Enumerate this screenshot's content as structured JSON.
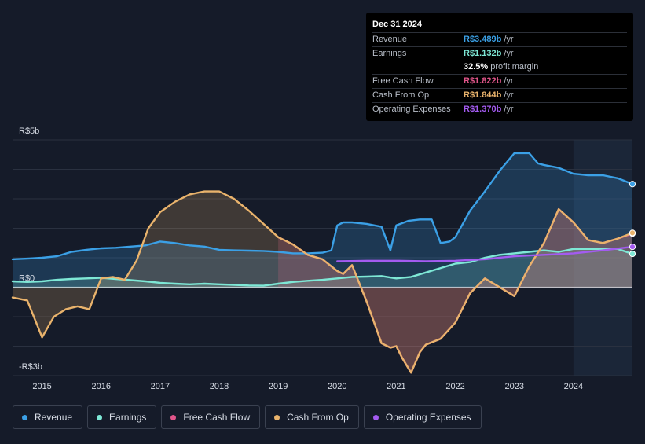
{
  "tooltip": {
    "date": "Dec 31 2024",
    "rows": [
      {
        "label": "Revenue",
        "value": "R$3.489b",
        "unit": "/yr",
        "color": "#3ba0e6"
      },
      {
        "label": "Earnings",
        "value": "R$1.132b",
        "unit": "/yr",
        "color": "#7ee8d6"
      },
      {
        "label": "",
        "value": "32.5%",
        "unit": "profit margin",
        "color": "#ffffff"
      },
      {
        "label": "Free Cash Flow",
        "value": "R$1.822b",
        "unit": "/yr",
        "color": "#e0558a"
      },
      {
        "label": "Cash From Op",
        "value": "R$1.844b",
        "unit": "/yr",
        "color": "#e9b36c"
      },
      {
        "label": "Operating Expenses",
        "value": "R$1.370b",
        "unit": "/yr",
        "color": "#a35bf0"
      }
    ]
  },
  "legend": [
    {
      "label": "Revenue",
      "color": "#3ba0e6"
    },
    {
      "label": "Earnings",
      "color": "#7ee8d6"
    },
    {
      "label": "Free Cash Flow",
      "color": "#e0558a"
    },
    {
      "label": "Cash From Op",
      "color": "#e9b36c"
    },
    {
      "label": "Operating Expenses",
      "color": "#a35bf0"
    }
  ],
  "chart_data": {
    "type": "area",
    "title": "",
    "xlabel": "",
    "ylabel": "",
    "ylim": [
      -3,
      5
    ],
    "xlim": [
      2014.5,
      2025.0
    ],
    "y_tick_labels": [
      {
        "value": 5,
        "label": "R$5b"
      },
      {
        "value": 0,
        "label": "R$0"
      },
      {
        "value": -3,
        "label": "-R$3b"
      }
    ],
    "x_tick_labels": [
      "2015",
      "2016",
      "2017",
      "2018",
      "2019",
      "2020",
      "2021",
      "2022",
      "2023",
      "2024"
    ],
    "x_ticks": [
      2015,
      2016,
      2017,
      2018,
      2019,
      2020,
      2021,
      2022,
      2023,
      2024
    ],
    "gridlines": [
      5,
      4,
      3,
      2,
      1,
      0,
      -1,
      -2,
      -3
    ],
    "forecast_start": 2024.0,
    "series": [
      {
        "name": "Revenue",
        "color": "#3ba0e6",
        "fill": true,
        "x": [
          2014.5,
          2014.75,
          2015.0,
          2015.25,
          2015.5,
          2015.75,
          2016.0,
          2016.25,
          2016.5,
          2016.75,
          2017.0,
          2017.25,
          2017.5,
          2017.75,
          2018.0,
          2018.25,
          2018.5,
          2018.75,
          2019.0,
          2019.25,
          2019.5,
          2019.75,
          2019.9,
          2020.0,
          2020.1,
          2020.25,
          2020.5,
          2020.75,
          2020.9,
          2021.0,
          2021.2,
          2021.4,
          2021.6,
          2021.75,
          2021.9,
          2022.0,
          2022.25,
          2022.5,
          2022.75,
          2023.0,
          2023.25,
          2023.4,
          2023.5,
          2023.75,
          2024.0,
          2024.25,
          2024.5,
          2024.75,
          2025.0
        ],
        "y": [
          0.95,
          0.97,
          1.0,
          1.05,
          1.2,
          1.27,
          1.32,
          1.34,
          1.38,
          1.42,
          1.55,
          1.5,
          1.42,
          1.38,
          1.27,
          1.25,
          1.24,
          1.23,
          1.2,
          1.15,
          1.15,
          1.17,
          1.25,
          2.1,
          2.2,
          2.2,
          2.15,
          2.05,
          1.25,
          2.1,
          2.25,
          2.3,
          2.3,
          1.5,
          1.55,
          1.7,
          2.6,
          3.25,
          3.95,
          4.55,
          4.55,
          4.2,
          4.15,
          4.05,
          3.85,
          3.8,
          3.8,
          3.7,
          3.5
        ]
      },
      {
        "name": "Earnings",
        "color": "#7ee8d6",
        "fill": true,
        "x": [
          2014.5,
          2014.75,
          2015.0,
          2015.25,
          2015.5,
          2015.75,
          2016.0,
          2016.25,
          2016.5,
          2016.75,
          2017.0,
          2017.25,
          2017.5,
          2017.75,
          2018.0,
          2018.25,
          2018.5,
          2018.75,
          2019.0,
          2019.25,
          2019.5,
          2019.75,
          2020.0,
          2020.25,
          2020.5,
          2020.75,
          2021.0,
          2021.25,
          2021.5,
          2021.75,
          2022.0,
          2022.25,
          2022.5,
          2022.75,
          2023.0,
          2023.25,
          2023.5,
          2023.75,
          2024.0,
          2024.25,
          2024.5,
          2024.75,
          2025.0
        ],
        "y": [
          0.2,
          0.18,
          0.2,
          0.25,
          0.28,
          0.3,
          0.32,
          0.28,
          0.24,
          0.2,
          0.15,
          0.12,
          0.1,
          0.12,
          0.1,
          0.08,
          0.06,
          0.05,
          0.12,
          0.18,
          0.22,
          0.25,
          0.3,
          0.35,
          0.36,
          0.38,
          0.3,
          0.35,
          0.5,
          0.65,
          0.8,
          0.85,
          1.0,
          1.1,
          1.15,
          1.2,
          1.25,
          1.2,
          1.3,
          1.3,
          1.3,
          1.3,
          1.132
        ]
      },
      {
        "name": "Free Cash Flow",
        "color": "#e0558a",
        "fill": true,
        "x": [
          2019.0,
          2019.25,
          2019.5,
          2019.75,
          2020.0,
          2020.1,
          2020.25,
          2020.5,
          2020.75,
          2020.9,
          2021.0,
          2021.1,
          2021.25,
          2021.4,
          2021.5,
          2021.75,
          2022.0,
          2022.25,
          2022.5,
          2022.75,
          2023.0,
          2023.25,
          2023.5,
          2023.75,
          2024.0,
          2024.25,
          2024.5,
          2024.75,
          2025.0
        ],
        "y": [
          1.7,
          1.45,
          1.1,
          0.95,
          0.55,
          0.45,
          0.75,
          -0.5,
          -1.9,
          -2.05,
          -2.0,
          -2.4,
          -2.9,
          -2.2,
          -1.95,
          -1.75,
          -1.2,
          -0.2,
          0.3,
          0.0,
          -0.3,
          0.7,
          1.5,
          2.65,
          2.2,
          1.6,
          1.5,
          1.65,
          1.822
        ]
      },
      {
        "name": "Cash From Op",
        "color": "#e9b36c",
        "fill": true,
        "x": [
          2014.5,
          2014.75,
          2015.0,
          2015.2,
          2015.4,
          2015.6,
          2015.8,
          2016.0,
          2016.2,
          2016.4,
          2016.6,
          2016.8,
          2017.0,
          2017.25,
          2017.5,
          2017.75,
          2018.0,
          2018.25,
          2018.5,
          2018.75,
          2019.0,
          2019.25,
          2019.5,
          2019.75,
          2020.0,
          2020.1,
          2020.25,
          2020.5,
          2020.75,
          2020.9,
          2021.0,
          2021.1,
          2021.25,
          2021.4,
          2021.5,
          2021.75,
          2022.0,
          2022.25,
          2022.5,
          2022.75,
          2023.0,
          2023.25,
          2023.5,
          2023.75,
          2024.0,
          2024.25,
          2024.5,
          2024.75,
          2025.0
        ],
        "y": [
          -0.35,
          -0.45,
          -1.7,
          -1.0,
          -0.75,
          -0.65,
          -0.75,
          0.3,
          0.35,
          0.25,
          0.9,
          2.0,
          2.55,
          2.9,
          3.15,
          3.25,
          3.25,
          3.0,
          2.6,
          2.15,
          1.7,
          1.45,
          1.1,
          0.95,
          0.55,
          0.45,
          0.75,
          -0.5,
          -1.9,
          -2.05,
          -2.0,
          -2.4,
          -2.9,
          -2.2,
          -1.95,
          -1.75,
          -1.2,
          -0.2,
          0.3,
          0.0,
          -0.3,
          0.7,
          1.5,
          2.65,
          2.2,
          1.6,
          1.5,
          1.65,
          1.844
        ]
      },
      {
        "name": "Operating Expenses",
        "color": "#a35bf0",
        "fill": false,
        "x": [
          2020.0,
          2020.5,
          2021.0,
          2021.5,
          2022.0,
          2022.5,
          2023.0,
          2023.5,
          2024.0,
          2024.5,
          2025.0
        ],
        "y": [
          0.88,
          0.9,
          0.9,
          0.88,
          0.9,
          0.95,
          1.05,
          1.1,
          1.15,
          1.25,
          1.37
        ]
      }
    ]
  }
}
